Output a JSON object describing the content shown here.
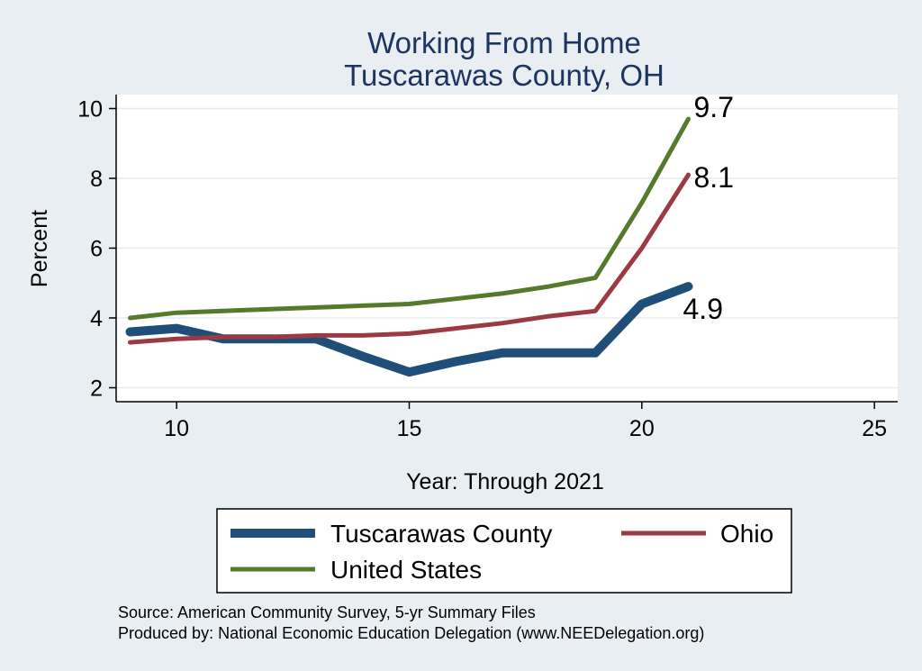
{
  "chart_data": {
    "type": "line",
    "title": [
      "Working From Home",
      "Tuscarawas County, OH"
    ],
    "xlabel": "Year: Through 2021",
    "ylabel": "Percent",
    "xlim": [
      8.7,
      25.5
    ],
    "ylim": [
      1.6,
      10.4
    ],
    "xticks": [
      10,
      15,
      20,
      25
    ],
    "yticks": [
      2,
      4,
      6,
      8,
      10
    ],
    "grid": true,
    "legend_position": "bottom",
    "series": [
      {
        "name": "Tuscarawas County",
        "color": "#1f4e79",
        "width": 10,
        "x": [
          9,
          10,
          11,
          12,
          13,
          14,
          15,
          16,
          17,
          18,
          19,
          20,
          21
        ],
        "y": [
          3.6,
          3.7,
          3.4,
          3.4,
          3.4,
          2.9,
          2.45,
          2.75,
          3.0,
          3.0,
          3.0,
          4.4,
          4.9
        ],
        "end_label": "4.9"
      },
      {
        "name": "Ohio",
        "color": "#9c3a44",
        "width": 5,
        "x": [
          9,
          10,
          11,
          12,
          13,
          14,
          15,
          16,
          17,
          18,
          19,
          20,
          21
        ],
        "y": [
          3.3,
          3.4,
          3.45,
          3.45,
          3.5,
          3.5,
          3.55,
          3.7,
          3.85,
          4.05,
          4.2,
          6.0,
          8.1
        ],
        "end_label": "8.1"
      },
      {
        "name": "United States",
        "color": "#557a2d",
        "width": 5,
        "x": [
          9,
          10,
          11,
          12,
          13,
          14,
          15,
          16,
          17,
          18,
          19,
          20,
          21
        ],
        "y": [
          4.0,
          4.15,
          4.2,
          4.25,
          4.3,
          4.35,
          4.4,
          4.55,
          4.7,
          4.9,
          5.15,
          7.3,
          9.7
        ],
        "end_label": "9.7"
      }
    ],
    "legend": [
      {
        "label": "Tuscarawas County",
        "color": "#1f4e79",
        "width": 10
      },
      {
        "label": "Ohio",
        "color": "#9c3a44",
        "width": 5
      },
      {
        "label": "United States",
        "color": "#557a2d",
        "width": 5
      }
    ]
  },
  "source_note": {
    "line1": "Source: American Community Survey, 5-yr Summary Files",
    "line2": "Produced by: National Economic Education Delegation (www.NEEDelegation.org)"
  }
}
